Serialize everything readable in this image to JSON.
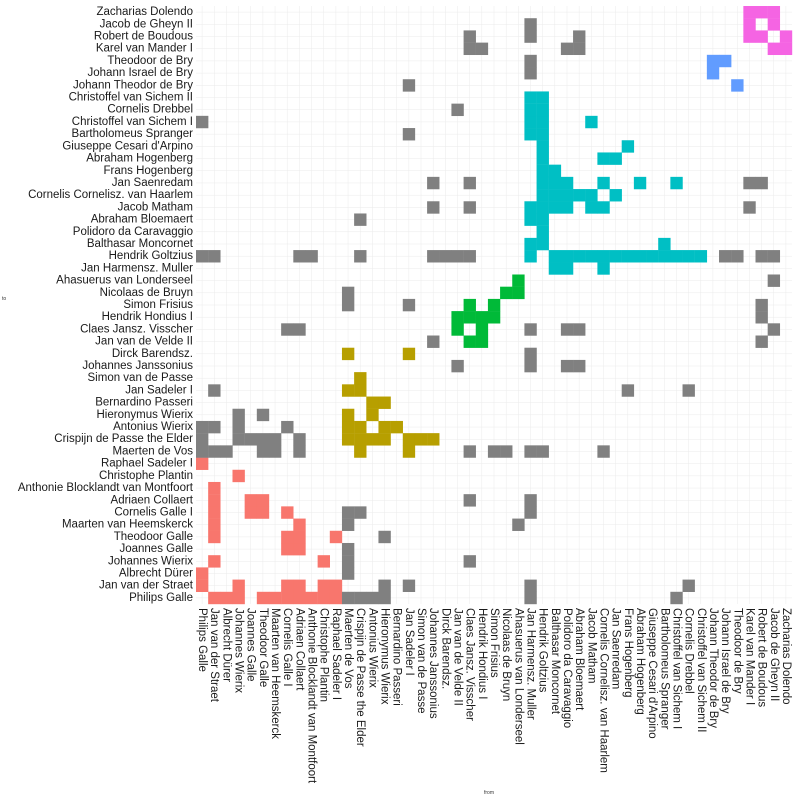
{
  "chart_data": {
    "type": "heatmap",
    "title": "",
    "xlabel": "from",
    "ylabel": "to",
    "grid": true,
    "legend": "none",
    "categories": [
      "Philips Galle",
      "Jan van der Straet",
      "Albrecht Dürer",
      "Johannes Wierix",
      "Joannes Galle",
      "Theodoor Galle",
      "Maarten van Heemskerck",
      "Cornelis Galle I",
      "Adriaen Collaert",
      "Anthonie Blocklandt van Montfoort",
      "Christophe Plantin",
      "Raphael Sadeler I",
      "Maerten de Vos",
      "Crispijn de Passe the Elder",
      "Antonius Wierix",
      "Hieronymus Wierix",
      "Bernardino Passeri",
      "Jan Sadeler I",
      "Simon van de Passe",
      "Johannes Janssonius",
      "Dirck Barendsz.",
      "Jan van de Velde II",
      "Claes Jansz. Visscher",
      "Hendrik Hondius I",
      "Simon Frisius",
      "Nicolaas de Bruyn",
      "Ahasuerus van Londerseel",
      "Jan Harmensz. Muller",
      "Hendrik Goltzius",
      "Balthasar Moncornet",
      "Polidoro da Caravaggio",
      "Abraham Bloemaert",
      "Jacob Matham",
      "Cornelis Cornelisz. van Haarlem",
      "Jan Saenredam",
      "Frans Hogenberg",
      "Abraham Hogenberg",
      "Giuseppe Cesari d'Arpino",
      "Bartholomeus Spranger",
      "Christoffel van Sichem I",
      "Cornelis Drebbel",
      "Christoffel van Sichem II",
      "Johann Theodor de Bry",
      "Johann Israel de Bry",
      "Theodoor de Bry",
      "Karel van Mander I",
      "Robert de Boudous",
      "Jacob de Gheyn II",
      "Zacharias Dolendo"
    ],
    "clusters": [
      {
        "name": "red",
        "color": "#F8766D",
        "members": [
          0,
          11
        ]
      },
      {
        "name": "olive",
        "color": "#B79F00",
        "members": [
          12,
          20
        ]
      },
      {
        "name": "green",
        "color": "#00BA38",
        "members": [
          21,
          26
        ]
      },
      {
        "name": "cyan",
        "color": "#00BFC4",
        "members": [
          27,
          41
        ]
      },
      {
        "name": "blue",
        "color": "#619CFF",
        "members": [
          42,
          44
        ]
      },
      {
        "name": "magenta",
        "color": "#F564E3",
        "members": [
          45,
          48
        ]
      }
    ],
    "other_color": "#808080",
    "cells": [
      [
        48,
        45
      ],
      [
        48,
        46
      ],
      [
        47,
        45
      ],
      [
        47,
        47
      ],
      [
        47,
        48
      ],
      [
        46,
        46
      ],
      [
        46,
        48
      ],
      [
        45,
        46
      ],
      [
        45,
        47
      ],
      [
        45,
        48
      ],
      [
        43,
        44
      ],
      [
        44,
        42
      ],
      [
        42,
        43
      ],
      [
        42,
        44
      ],
      [
        41,
        28
      ],
      [
        40,
        28
      ],
      [
        39,
        28
      ],
      [
        38,
        28
      ],
      [
        38,
        29
      ],
      [
        37,
        28
      ],
      [
        36,
        28
      ],
      [
        35,
        28
      ],
      [
        34,
        28
      ],
      [
        34,
        33
      ],
      [
        34,
        36
      ],
      [
        33,
        28
      ],
      [
        32,
        28
      ],
      [
        32,
        33
      ],
      [
        32,
        39
      ],
      [
        31,
        28
      ],
      [
        31,
        33
      ],
      [
        30,
        28
      ],
      [
        29,
        28
      ],
      [
        28,
        29
      ],
      [
        28,
        30
      ],
      [
        28,
        31
      ],
      [
        28,
        32
      ],
      [
        28,
        33
      ],
      [
        28,
        34
      ],
      [
        28,
        35
      ],
      [
        28,
        36
      ],
      [
        28,
        37
      ],
      [
        28,
        38
      ],
      [
        28,
        39
      ],
      [
        28,
        40
      ],
      [
        28,
        41
      ],
      [
        29,
        27
      ],
      [
        29,
        32
      ],
      [
        29,
        33
      ],
      [
        29,
        34
      ],
      [
        29,
        35
      ],
      [
        30,
        27
      ],
      [
        30,
        32
      ],
      [
        30,
        33
      ],
      [
        30,
        34
      ],
      [
        33,
        27
      ],
      [
        33,
        32
      ],
      [
        33,
        34
      ],
      [
        33,
        36
      ],
      [
        35,
        37
      ],
      [
        36,
        34
      ],
      [
        39,
        34
      ],
      [
        27,
        28
      ],
      [
        27,
        29
      ],
      [
        27,
        31
      ],
      [
        27,
        32
      ],
      [
        27,
        38
      ],
      [
        27,
        39
      ],
      [
        27,
        40
      ],
      [
        27,
        41
      ],
      [
        21,
        22
      ],
      [
        21,
        23
      ],
      [
        22,
        21
      ],
      [
        22,
        23
      ],
      [
        22,
        24
      ],
      [
        23,
        21
      ],
      [
        23,
        22
      ],
      [
        23,
        23
      ],
      [
        24,
        23
      ],
      [
        24,
        24
      ],
      [
        25,
        25
      ],
      [
        26,
        25
      ],
      [
        26,
        26
      ],
      [
        12,
        13
      ],
      [
        12,
        14
      ],
      [
        12,
        15
      ],
      [
        12,
        17
      ],
      [
        13,
        12
      ],
      [
        13,
        13
      ],
      [
        13,
        14
      ],
      [
        13,
        17
      ],
      [
        13,
        18
      ],
      [
        14,
        13
      ],
      [
        14,
        15
      ],
      [
        14,
        16
      ],
      [
        15,
        13
      ],
      [
        15,
        14
      ],
      [
        15,
        16
      ],
      [
        16,
        14
      ],
      [
        17,
        12
      ],
      [
        17,
        13
      ],
      [
        17,
        20
      ],
      [
        18,
        13
      ],
      [
        19,
        13
      ],
      [
        0,
        1
      ],
      [
        0,
        2
      ],
      [
        1,
        0
      ],
      [
        1,
        3
      ],
      [
        1,
        5
      ],
      [
        1,
        6
      ],
      [
        1,
        7
      ],
      [
        1,
        8
      ],
      [
        1,
        9
      ],
      [
        2,
        0
      ],
      [
        3,
        0
      ],
      [
        3,
        1
      ],
      [
        3,
        10
      ],
      [
        4,
        7
      ],
      [
        4,
        8
      ],
      [
        5,
        0
      ],
      [
        5,
        7
      ],
      [
        5,
        8
      ],
      [
        6,
        0
      ],
      [
        7,
        0
      ],
      [
        7,
        1
      ],
      [
        7,
        4
      ],
      [
        7,
        5
      ],
      [
        7,
        7
      ],
      [
        8,
        0
      ],
      [
        8,
        1
      ],
      [
        8,
        4
      ],
      [
        8,
        5
      ],
      [
        8,
        6
      ],
      [
        9,
        0
      ],
      [
        10,
        0
      ],
      [
        10,
        3
      ],
      [
        0,
        11
      ],
      [
        0,
        12
      ],
      [
        0,
        13
      ],
      [
        1,
        12
      ],
      [
        2,
        12
      ],
      [
        3,
        13
      ],
      [
        3,
        14
      ],
      [
        3,
        15
      ],
      [
        1,
        14
      ],
      [
        7,
        14
      ],
      [
        5,
        15
      ],
      [
        7,
        22
      ],
      [
        5,
        12
      ],
      [
        6,
        12
      ],
      [
        8,
        12
      ],
      [
        8,
        13
      ],
      [
        8,
        22
      ],
      [
        4,
        13
      ],
      [
        5,
        13
      ],
      [
        6,
        13
      ],
      [
        9,
        28
      ],
      [
        8,
        28
      ],
      [
        1,
        28
      ],
      [
        0,
        39
      ],
      [
        0,
        14
      ],
      [
        1,
        17
      ],
      [
        0,
        28
      ],
      [
        10,
        1
      ],
      [
        11,
        0
      ],
      [
        11,
        1
      ],
      [
        11,
        5
      ],
      [
        12,
        0
      ],
      [
        12,
        2
      ],
      [
        12,
        3
      ],
      [
        12,
        4
      ],
      [
        12,
        6
      ],
      [
        12,
        7
      ],
      [
        12,
        20
      ],
      [
        12,
        24
      ],
      [
        12,
        25
      ],
      [
        13,
        0
      ],
      [
        13,
        7
      ],
      [
        13,
        28
      ],
      [
        13,
        31
      ],
      [
        14,
        0
      ],
      [
        15,
        0
      ],
      [
        15,
        1
      ],
      [
        15,
        5
      ],
      [
        17,
        1
      ],
      [
        17,
        24
      ],
      [
        17,
        38
      ],
      [
        17,
        42
      ],
      [
        19,
        21
      ],
      [
        19,
        28
      ],
      [
        19,
        32
      ],
      [
        19,
        34
      ],
      [
        20,
        28
      ],
      [
        21,
        19
      ],
      [
        21,
        28
      ],
      [
        21,
        40
      ],
      [
        22,
        3
      ],
      [
        22,
        8
      ],
      [
        22,
        12
      ],
      [
        22,
        28
      ],
      [
        22,
        32
      ],
      [
        22,
        34
      ],
      [
        22,
        45
      ],
      [
        22,
        46
      ],
      [
        23,
        45
      ],
      [
        24,
        12
      ],
      [
        25,
        12
      ],
      [
        26,
        6
      ],
      [
        27,
        0
      ],
      [
        27,
        1
      ],
      [
        27,
        7
      ],
      [
        27,
        8
      ],
      [
        27,
        12
      ],
      [
        27,
        19
      ],
      [
        27,
        20
      ],
      [
        27,
        22
      ],
      [
        27,
        43
      ],
      [
        27,
        44
      ],
      [
        27,
        46
      ],
      [
        27,
        47
      ],
      [
        28,
        12
      ],
      [
        30,
        19
      ],
      [
        30,
        22
      ],
      [
        30,
        45
      ],
      [
        31,
        19
      ],
      [
        31,
        22
      ],
      [
        31,
        45
      ],
      [
        31,
        46
      ],
      [
        33,
        12
      ],
      [
        35,
        17
      ],
      [
        39,
        0
      ],
      [
        40,
        1
      ],
      [
        40,
        17
      ],
      [
        41,
        28
      ],
      [
        45,
        32
      ],
      [
        45,
        34
      ],
      [
        46,
        21
      ],
      [
        46,
        23
      ],
      [
        46,
        24
      ],
      [
        46,
        28
      ],
      [
        46,
        34
      ],
      [
        47,
        22
      ],
      [
        47,
        26
      ],
      [
        47,
        28
      ],
      [
        44,
        28
      ],
      [
        43,
        28
      ],
      [
        32,
        32
      ]
    ]
  }
}
